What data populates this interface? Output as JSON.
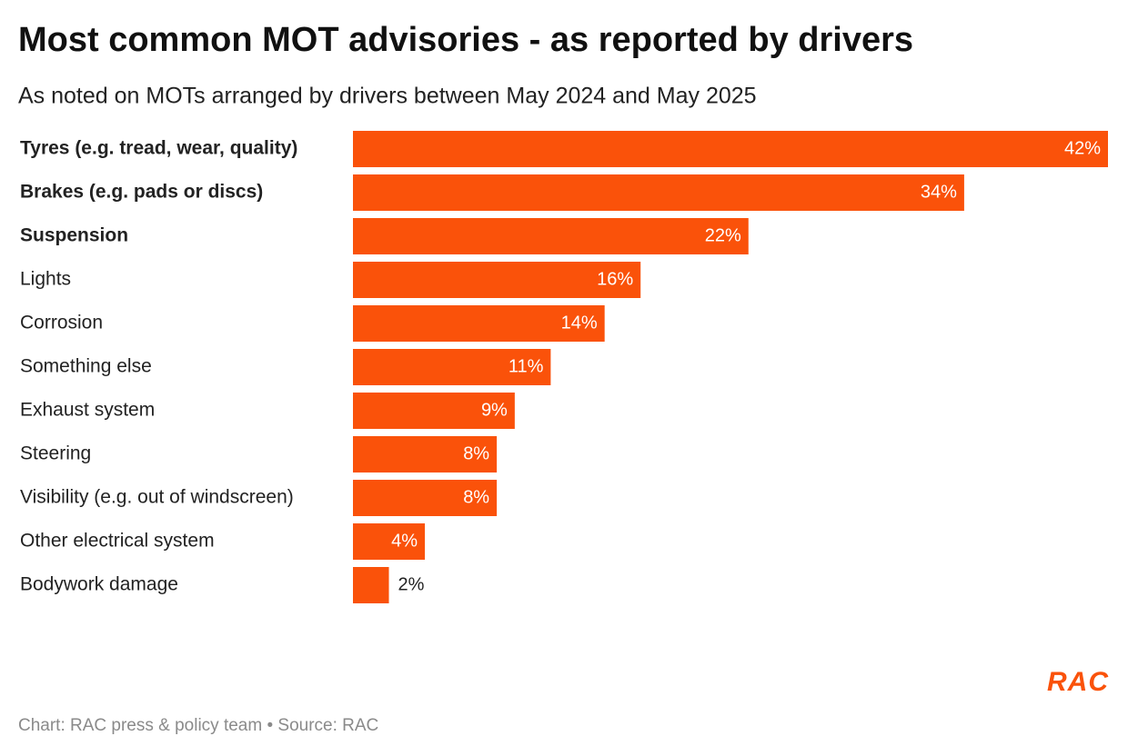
{
  "chart_data": {
    "type": "bar",
    "orientation": "horizontal",
    "title": "Most common MOT advisories - as reported by drivers",
    "subtitle": "As noted on MOTs arranged by drivers between May 2024 and May 2025",
    "categories": [
      "Tyres (e.g. tread, wear, quality)",
      "Brakes (e.g. pads or discs)",
      "Suspension",
      "Lights",
      "Corrosion",
      "Something else",
      "Exhaust system",
      "Steering",
      "Visibility (e.g. out of windscreen)",
      "Other electrical system",
      "Bodywork damage"
    ],
    "values": [
      42,
      34,
      22,
      16,
      14,
      11,
      9,
      8,
      8,
      4,
      2
    ],
    "value_labels": [
      "42%",
      "34%",
      "22%",
      "16%",
      "14%",
      "11%",
      "9%",
      "8%",
      "8%",
      "4%",
      "2%"
    ],
    "color": "#fa520a",
    "source": "Chart: RAC press & policy team • Source: RAC",
    "logo": "RAC"
  }
}
